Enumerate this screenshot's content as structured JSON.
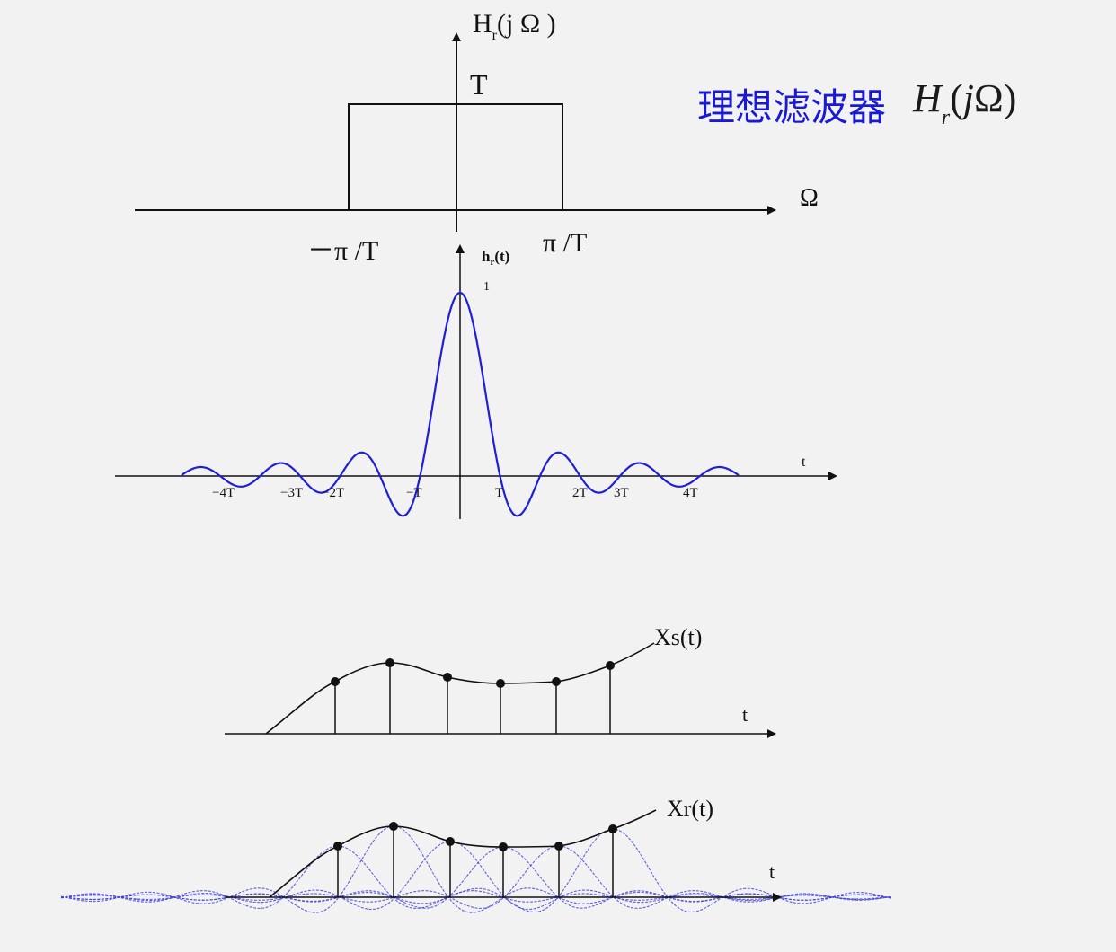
{
  "title": {
    "text": "理想滤波器",
    "formula_H": "H",
    "formula_sub": "r",
    "formula_open": "(",
    "formula_j": "j",
    "formula_omega": "Ω",
    "formula_close": ")"
  },
  "freq_plot": {
    "ylabel_main": "H",
    "ylabel_sub": "r",
    "ylabel_rest": "(j Ω )",
    "height_label": "T",
    "xlabel": "Ω",
    "neg_cutoff": "－π /T",
    "pos_cutoff": "π /T"
  },
  "impulse_plot": {
    "ylabel_main": "h",
    "ylabel_sub": "r",
    "ylabel_rest": "(t)",
    "peak_label": "1",
    "xlabel": "t",
    "ticks": [
      "−4T",
      "−3T",
      "−2T",
      "−T",
      "T",
      "2T",
      "3T",
      "4T"
    ]
  },
  "sampled_plot": {
    "curve_label": "Xs(t)",
    "xlabel": "t"
  },
  "recon_plot": {
    "curve_label": "Xr(t)",
    "xlabel": "t"
  },
  "colors": {
    "accent": "#1a1ad6",
    "sinc": "#1f1fd8",
    "faint_sinc": "#3b3bd8",
    "ink": "#111111",
    "background": "#f2f2f2"
  }
}
